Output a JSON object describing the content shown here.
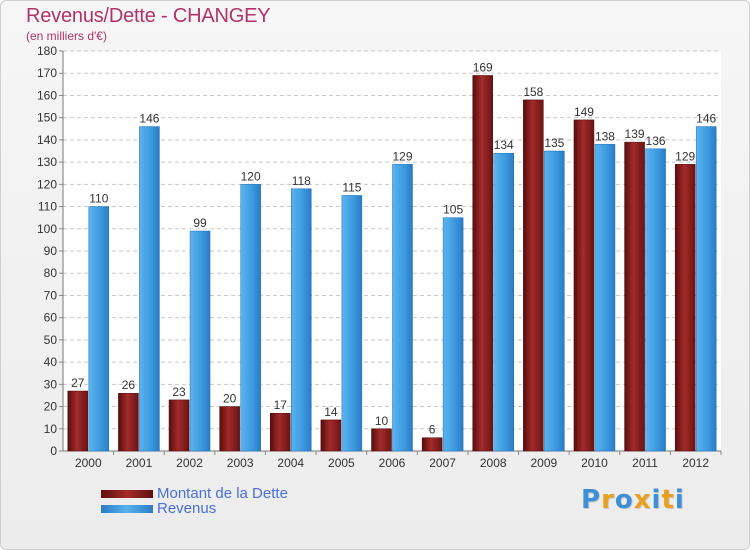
{
  "chart_data": {
    "type": "bar",
    "title": "Revenus/Dette - CHANGEY",
    "subtitle": "(en milliers d'€)",
    "categories": [
      "2000",
      "2001",
      "2002",
      "2003",
      "2004",
      "2005",
      "2006",
      "2007",
      "2008",
      "2009",
      "2010",
      "2011",
      "2012"
    ],
    "series": [
      {
        "name": "Montant de la Dette",
        "color": "#8b1a1a",
        "values": [
          27,
          26,
          23,
          20,
          17,
          14,
          10,
          6,
          169,
          158,
          149,
          139,
          129
        ]
      },
      {
        "name": "Revenus",
        "color": "#3d9be0",
        "values": [
          110,
          146,
          99,
          120,
          118,
          115,
          129,
          105,
          134,
          135,
          138,
          136,
          146
        ]
      }
    ],
    "ylim": [
      0,
      180
    ],
    "ytick_step": 10,
    "grid": true,
    "legend_position": "bottom-left",
    "data_labels": true
  },
  "branding": {
    "logo_letters": [
      "P",
      "r",
      "o",
      "x",
      "i",
      "t",
      "i"
    ],
    "logo_colors": [
      "#3d8fd8",
      "#e8a020",
      "#3d8fd8",
      "#e8a020",
      "#3d8fd8",
      "#e8a020",
      "#3d8fd8"
    ]
  }
}
